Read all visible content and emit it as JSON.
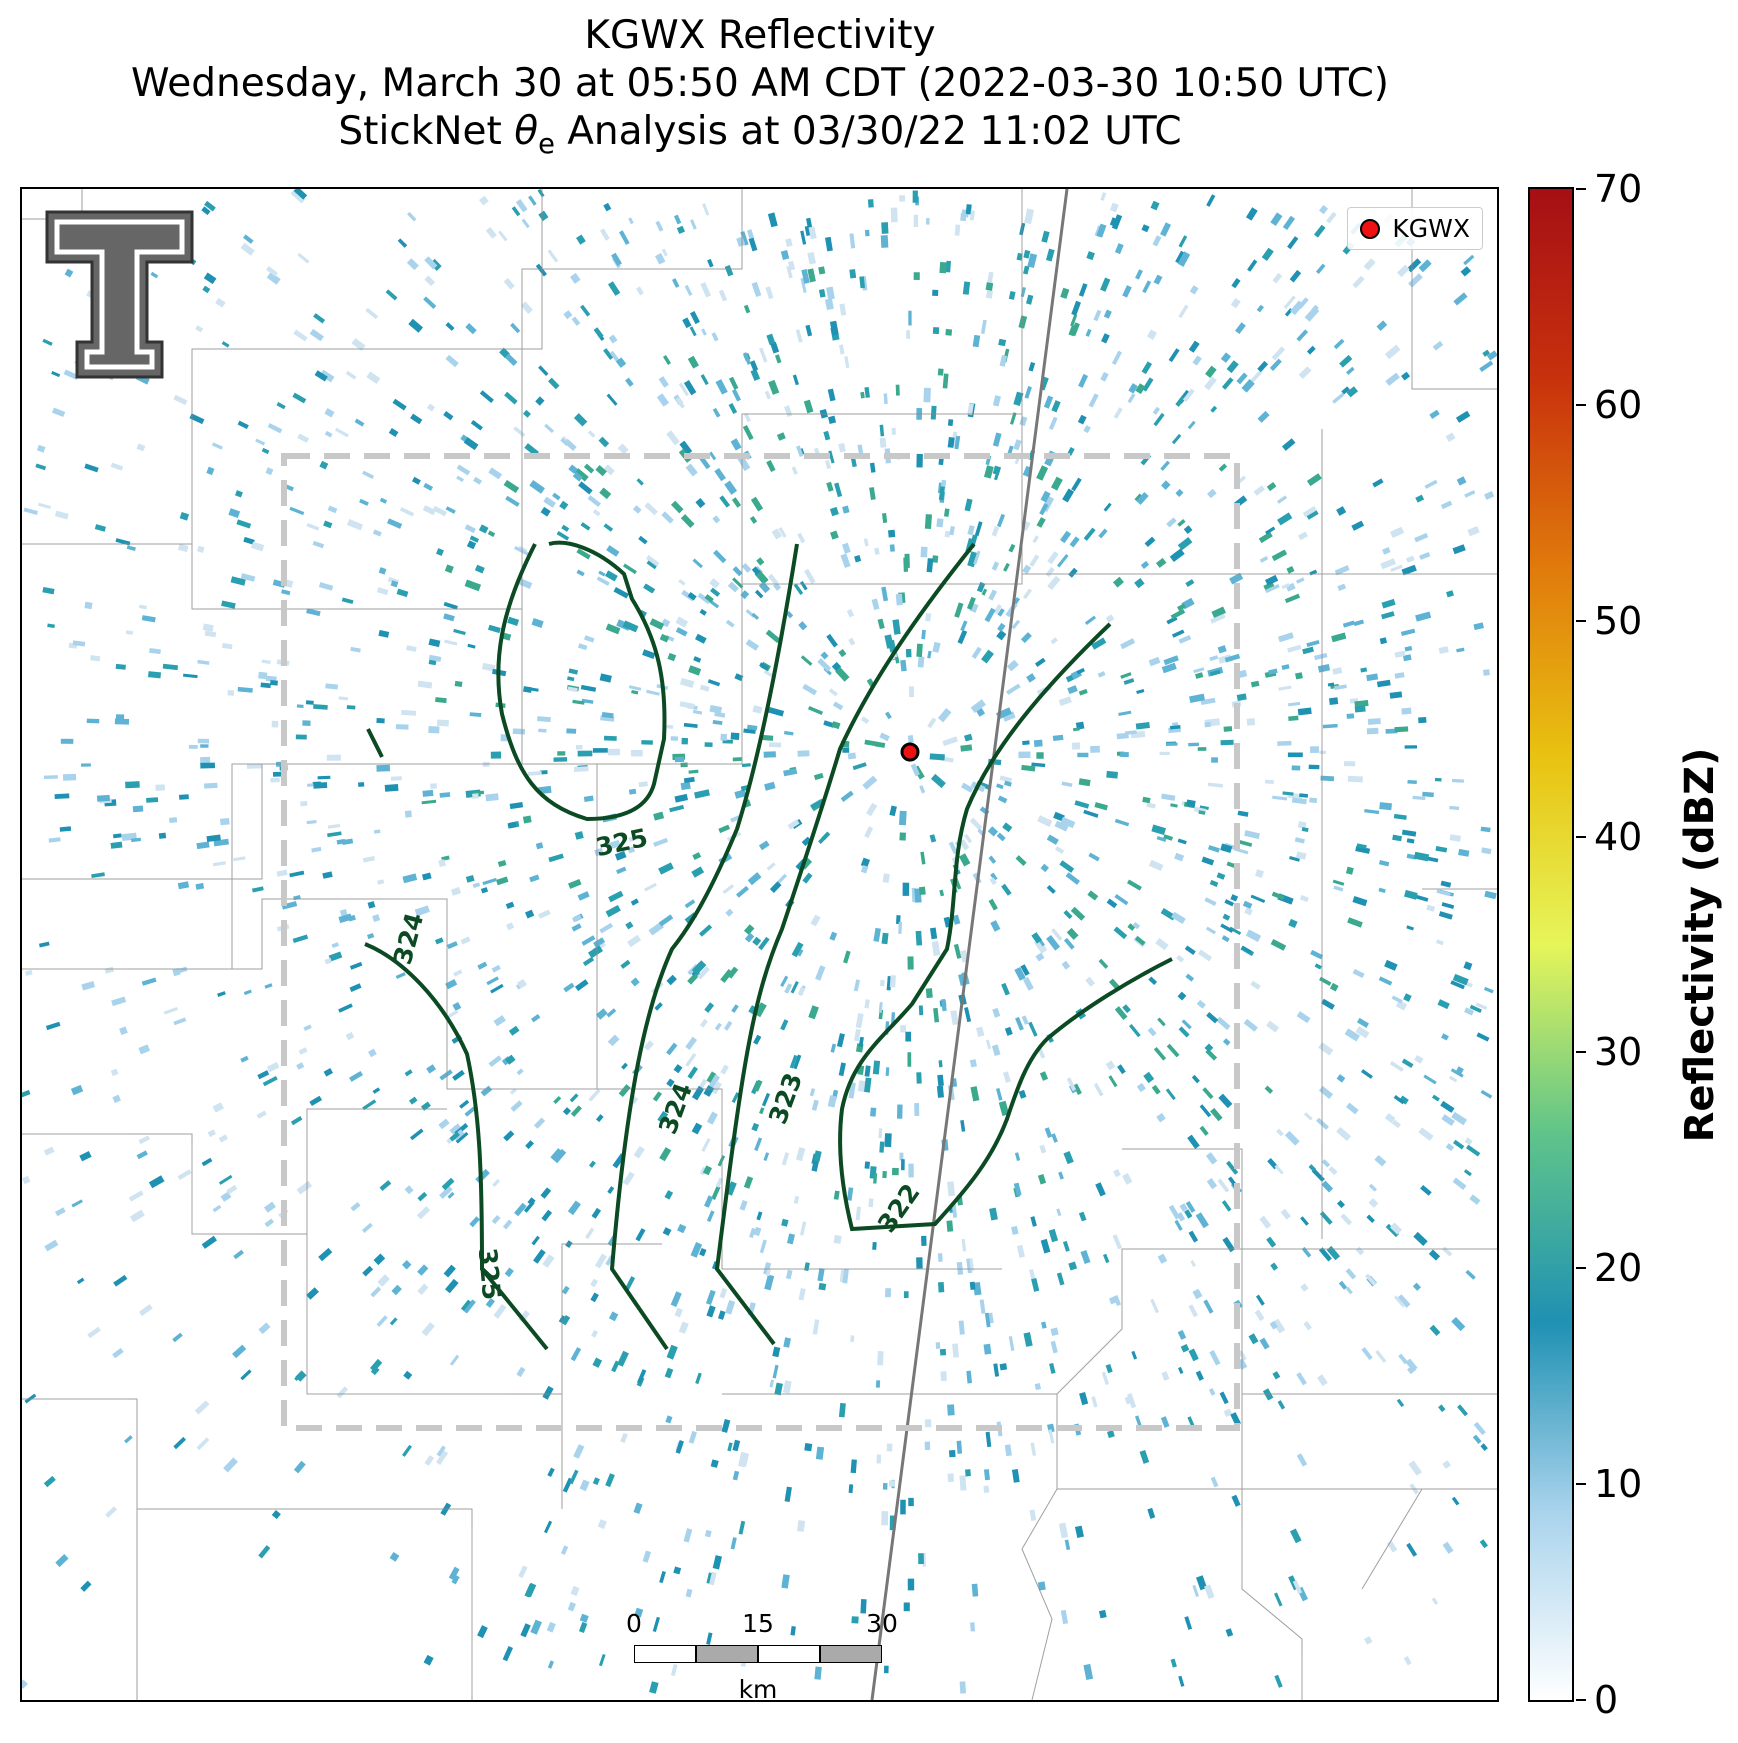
{
  "title": {
    "line1": "KGWX Reflectivity",
    "line2": "Wednesday, March 30 at 05:50 AM CDT (2022-03-30 10:50 UTC)",
    "line3_prefix": "StickNet ",
    "line3_theta": "θ",
    "line3_sub": "e",
    "line3_suffix": " Analysis at 03/30/22 11:02 UTC"
  },
  "legend": {
    "label": "KGWX"
  },
  "radar_site": {
    "name": "KGWX",
    "color": "#ee1111"
  },
  "contours": {
    "color": "#0b4a22",
    "labels": [
      "324",
      "325",
      "324",
      "323",
      "322",
      "325"
    ]
  },
  "scalebar": {
    "ticks": [
      "0",
      "15",
      "30"
    ],
    "unit": "km"
  },
  "colorbar": {
    "title": "Reflectivity (dBZ)",
    "ticks": [
      "0",
      "10",
      "20",
      "30",
      "40",
      "50",
      "60",
      "70"
    ],
    "colors": [
      "#ffffff",
      "#a9d3ec",
      "#1f91b3",
      "#5fc48a",
      "#e6f55a",
      "#e8c211",
      "#e07a0c",
      "#c8310c",
      "#a50f15"
    ]
  },
  "analysis_box_color": "#c8c8c8",
  "logo": {
    "icon": "texas-tech-double-t-logo"
  }
}
